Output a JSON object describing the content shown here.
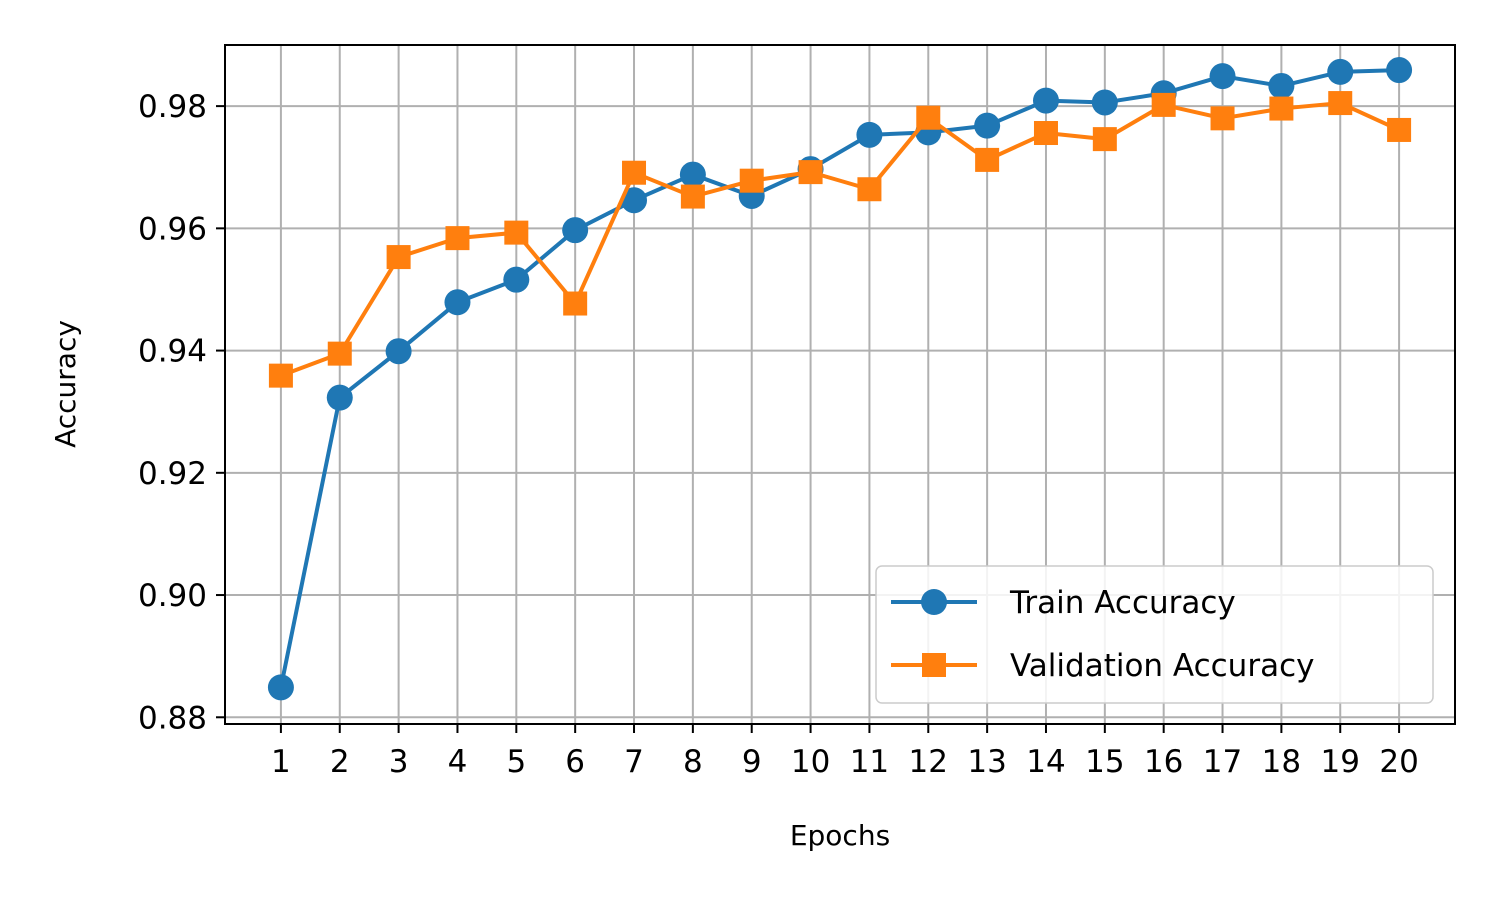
{
  "chart_data": {
    "type": "line",
    "title": "",
    "xlabel": "Epochs",
    "ylabel": "Accuracy",
    "x": [
      1,
      2,
      3,
      4,
      5,
      6,
      7,
      8,
      9,
      10,
      11,
      12,
      13,
      14,
      15,
      16,
      17,
      18,
      19,
      20
    ],
    "x_tick_labels": [
      "1",
      "2",
      "3",
      "4",
      "5",
      "6",
      "7",
      "8",
      "9",
      "10",
      "11",
      "12",
      "13",
      "14",
      "15",
      "16",
      "17",
      "18",
      "19",
      "20"
    ],
    "xlim": [
      0.05,
      20.95
    ],
    "ylim": [
      0.8789,
      0.99
    ],
    "y_ticks": [
      0.88,
      0.9,
      0.92,
      0.94,
      0.96,
      0.98
    ],
    "y_tick_labels": [
      "0.88",
      "0.90",
      "0.92",
      "0.94",
      "0.96",
      "0.98"
    ],
    "grid": true,
    "legend_position": "lower-right",
    "series": [
      {
        "name": "Train Accuracy",
        "color": "#1f77b4",
        "marker": "circle",
        "values": [
          0.8849,
          0.9323,
          0.9399,
          0.9479,
          0.9516,
          0.9597,
          0.9646,
          0.9688,
          0.9653,
          0.9697,
          0.9753,
          0.9757,
          0.9768,
          0.9809,
          0.9806,
          0.9821,
          0.9849,
          0.9833,
          0.9856,
          0.9859
        ]
      },
      {
        "name": "Validation Accuracy",
        "color": "#ff7f0e",
        "marker": "square",
        "values": [
          0.9359,
          0.9395,
          0.9553,
          0.9584,
          0.9593,
          0.9477,
          0.9691,
          0.9652,
          0.9678,
          0.9692,
          0.9664,
          0.9781,
          0.9712,
          0.9756,
          0.9746,
          0.9802,
          0.978,
          0.9796,
          0.9805,
          0.9761
        ]
      }
    ]
  }
}
